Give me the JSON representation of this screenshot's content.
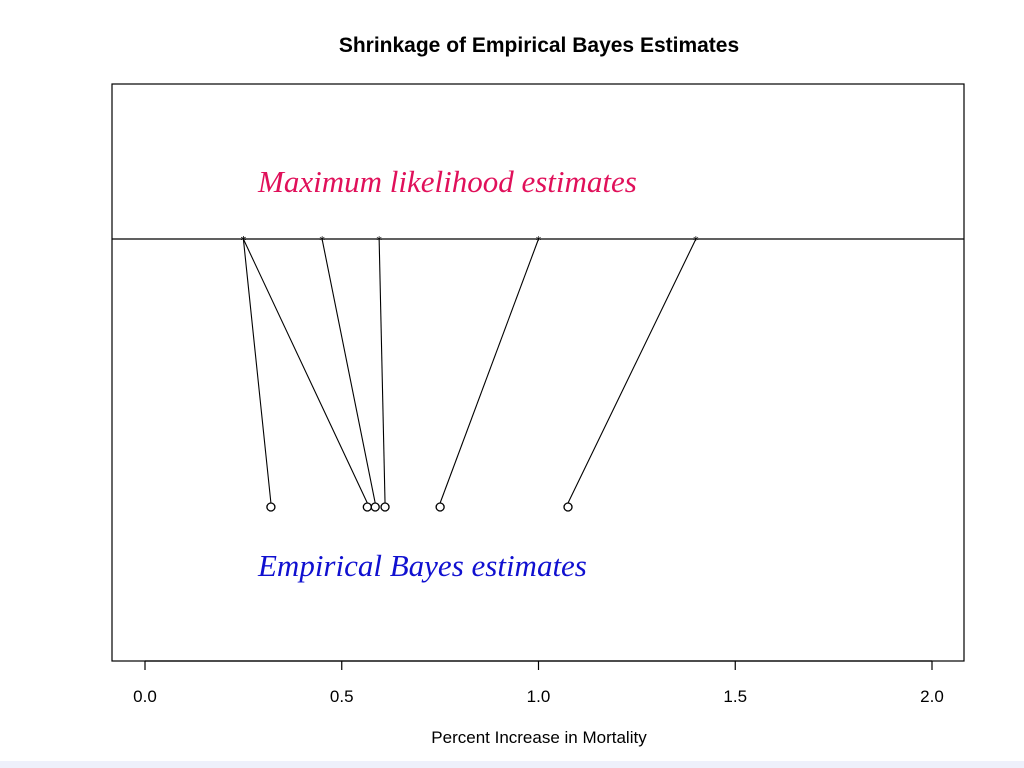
{
  "chart_data": {
    "type": "scatter",
    "title": "Shrinkage of Empirical Bayes Estimates",
    "xlabel": "Percent Increase in Mortality",
    "ylabel": "",
    "xlim": [
      0.0,
      2.0
    ],
    "xticks": [
      "0.0",
      "0.5",
      "1.0",
      "1.5",
      "2.0"
    ],
    "grid": false,
    "annotations": {
      "mle": {
        "text": "Maximum likelihood estimates",
        "color": "#e0105a"
      },
      "eb": {
        "text": "Empirical Bayes estimates",
        "color": "#1010d0"
      }
    },
    "pairs": [
      {
        "mle": 0.25,
        "eb": 0.32
      },
      {
        "mle": 0.25,
        "eb": 0.565
      },
      {
        "mle": 0.45,
        "eb": 0.585
      },
      {
        "mle": 0.595,
        "eb": 0.61
      },
      {
        "mle": 1.0,
        "eb": 0.75
      },
      {
        "mle": 1.4,
        "eb": 1.075
      }
    ]
  }
}
